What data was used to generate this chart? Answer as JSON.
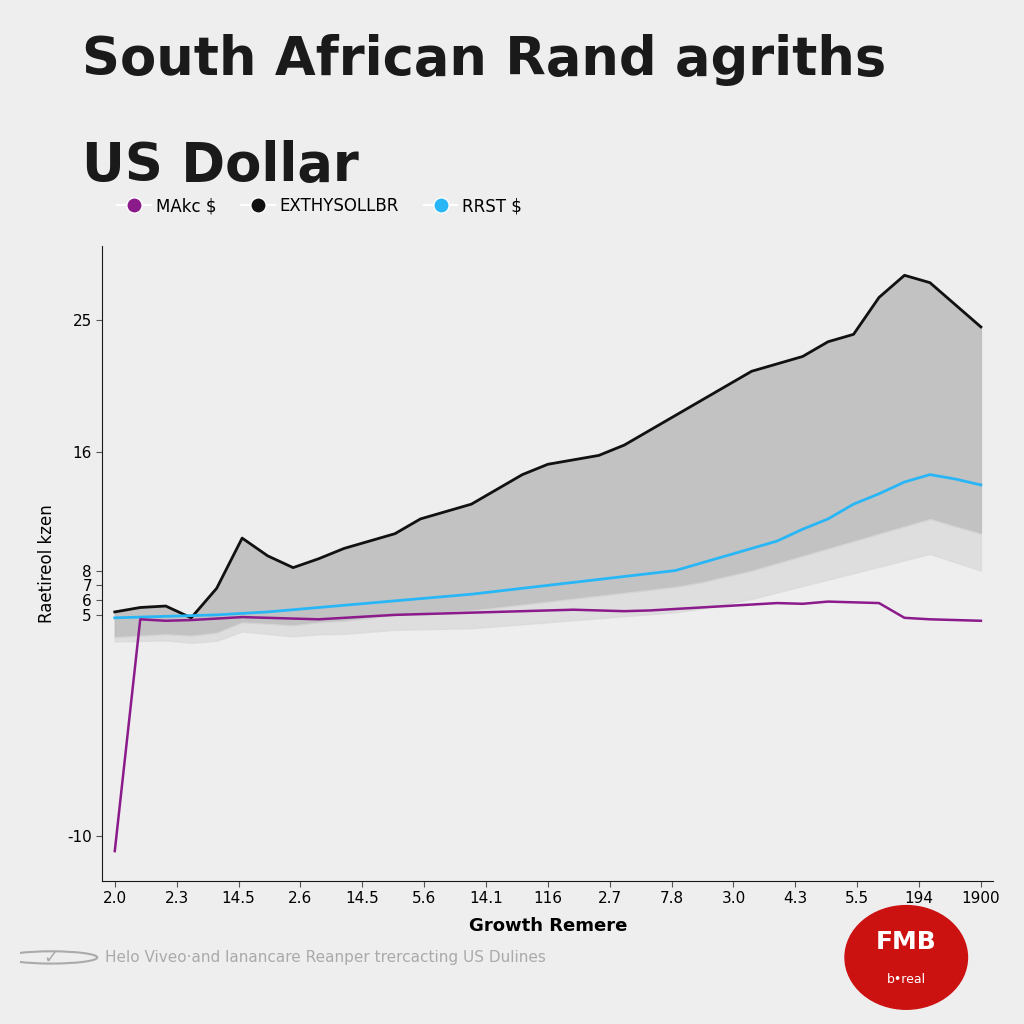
{
  "title_line1": "South African Rand agriths",
  "title_line2": "US Dollar",
  "title_bar_color": "#7B1FA2",
  "background_color": "#EEEEEE",
  "xlabel": "Growth Remere",
  "ylabel": "Raetireol kzen",
  "x_labels": [
    "2.0",
    "2.3",
    "14.5",
    "2.6",
    "14.5",
    "5.6",
    "14.1",
    "116",
    "2.7",
    "7.8",
    "3.0",
    "4.3",
    "5.5",
    "194",
    "1900"
  ],
  "ytick_vals": [
    -10,
    5,
    6,
    7,
    8,
    16,
    25
  ],
  "ytick_labels": [
    "-10",
    "5",
    "6",
    "7",
    "8",
    "16",
    "25"
  ],
  "ylim": [
    -13,
    30
  ],
  "legend_labels": [
    "MAkc $",
    "EXTHYSOLLBR",
    "RRST $"
  ],
  "legend_colors": [
    "#8B1A8B",
    "#111111",
    "#29B6F6"
  ],
  "footer_text": "Helo Viveo·and lanancare Reanper trercacting US Dulines",
  "brand_text": "FMB",
  "brand_subtext": "b•real",
  "band_fill_dark": "#BBBBBB",
  "band_fill_light": "#D8D8D8",
  "black_y": [
    5.2,
    5.5,
    5.6,
    4.8,
    6.8,
    10.2,
    9.0,
    8.2,
    8.8,
    9.5,
    10.0,
    10.5,
    11.5,
    12.0,
    12.5,
    13.5,
    14.5,
    15.2,
    15.5,
    15.8,
    16.5,
    17.5,
    18.5,
    19.5,
    20.5,
    21.5,
    22.0,
    22.5,
    23.5,
    24.0,
    26.5,
    28.0,
    27.5,
    26.0,
    24.5
  ],
  "blue_y": [
    4.8,
    4.85,
    4.9,
    4.95,
    5.0,
    5.1,
    5.2,
    5.35,
    5.5,
    5.65,
    5.8,
    5.95,
    6.1,
    6.25,
    6.4,
    6.6,
    6.8,
    7.0,
    7.2,
    7.4,
    7.6,
    7.8,
    8.0,
    8.5,
    9.0,
    9.5,
    10.0,
    10.8,
    11.5,
    12.5,
    13.2,
    14.0,
    14.5,
    14.2,
    13.8
  ],
  "purple_y": [
    -11.0,
    4.7,
    4.6,
    4.65,
    4.75,
    4.85,
    4.8,
    4.75,
    4.7,
    4.8,
    4.9,
    5.0,
    5.05,
    5.1,
    5.15,
    5.2,
    5.25,
    5.3,
    5.35,
    5.3,
    5.25,
    5.3,
    5.4,
    5.5,
    5.6,
    5.7,
    5.8,
    5.75,
    5.9,
    5.85,
    5.8,
    4.8,
    4.7,
    4.65,
    4.6
  ],
  "lower_band_y": [
    3.5,
    3.6,
    3.7,
    3.6,
    3.8,
    4.5,
    4.4,
    4.3,
    4.5,
    4.6,
    4.8,
    5.0,
    5.1,
    5.2,
    5.3,
    5.5,
    5.7,
    5.9,
    6.1,
    6.3,
    6.5,
    6.7,
    6.9,
    7.2,
    7.6,
    8.0,
    8.5,
    9.0,
    9.5,
    10.0,
    10.5,
    11.0,
    11.5,
    11.0,
    10.5
  ]
}
